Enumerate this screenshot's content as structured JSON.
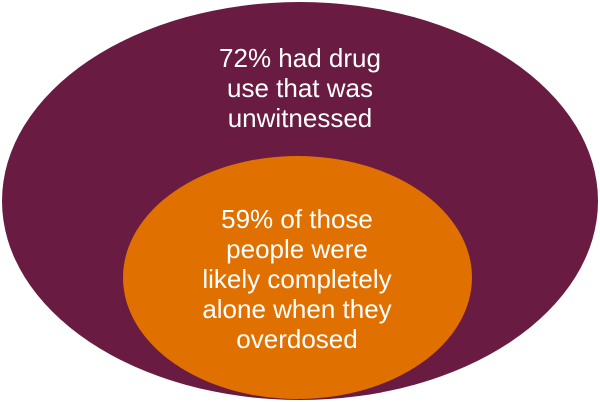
{
  "diagram": {
    "outer": {
      "text": "72% had drug\nuse that was\nunwitnessed",
      "color": "#691b41"
    },
    "inner": {
      "text": "59% of those\npeople were\nlikely completely\nalone when they\noverdosed",
      "color": "#e07000"
    }
  }
}
